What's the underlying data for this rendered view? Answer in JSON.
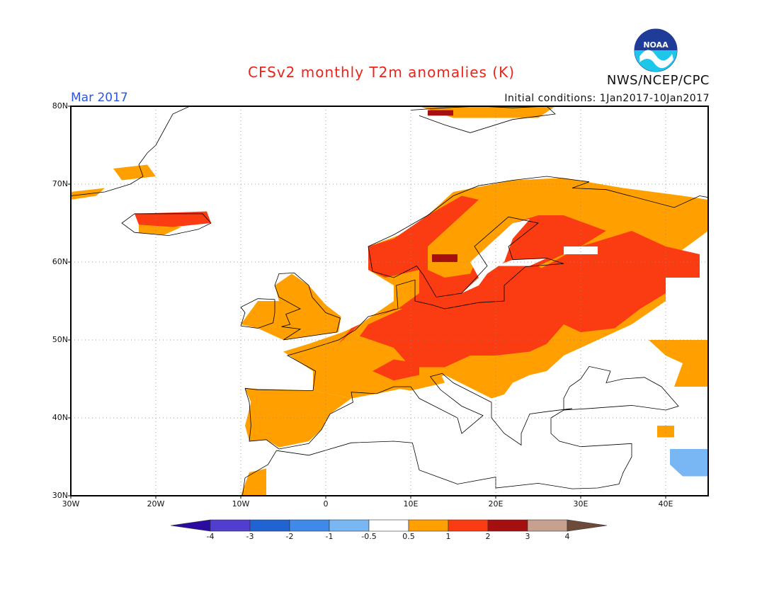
{
  "header": {
    "title": "CFSv2 monthly T2m anomalies (K)",
    "month": "Mar 2017",
    "initial_conditions": "Initial conditions: 1Jan2017-10Jan2017",
    "agency": "NWS/NCEP/CPC",
    "logo_text": "NOAA"
  },
  "map": {
    "lat_labels": [
      "80N",
      "70N",
      "60N",
      "50N",
      "40N",
      "30N"
    ],
    "lon_labels": [
      "30W",
      "20W",
      "10W",
      "0",
      "10E",
      "20E",
      "30E",
      "40E"
    ],
    "lat_range": [
      30,
      80
    ],
    "lon_range": [
      -30,
      45
    ]
  },
  "colorbar": {
    "labels": [
      "-4",
      "-3",
      "-2",
      "-1",
      "-0.5",
      "0.5",
      "1",
      "2",
      "3",
      "4"
    ],
    "colors": [
      "#2a0ca0",
      "#4f3ed0",
      "#1f64d2",
      "#3f8ae8",
      "#78b6f4",
      "#ffffff",
      "#ffa000",
      "#fb3c12",
      "#a60f0f",
      "#c8a090",
      "#6e4a3a"
    ]
  },
  "chart_data": {
    "type": "heatmap",
    "title": "CFSv2 monthly T2m anomalies (K)",
    "units": "K",
    "regions": [
      {
        "region": "Central and Eastern Europe",
        "anomaly_range": "1 to 2"
      },
      {
        "region": "Scandinavia",
        "anomaly_range": "1 to 2"
      },
      {
        "region": "Western Russia",
        "anomaly_range": "1 to 2"
      },
      {
        "region": "Iberia",
        "anomaly_range": "0.5 to 1"
      },
      {
        "region": "France",
        "anomaly_range": "0.5 to 1"
      },
      {
        "region": "British Isles",
        "anomaly_range": "0.5 to 1"
      },
      {
        "region": "Iceland",
        "anomaly_range": "1 to 2"
      },
      {
        "region": "Mediterranean and North Africa",
        "anomaly_range": "-0.5 to 0.5"
      },
      {
        "region": "Middle East near 40E 35N",
        "anomaly_range": "-1 to -0.5"
      }
    ]
  }
}
